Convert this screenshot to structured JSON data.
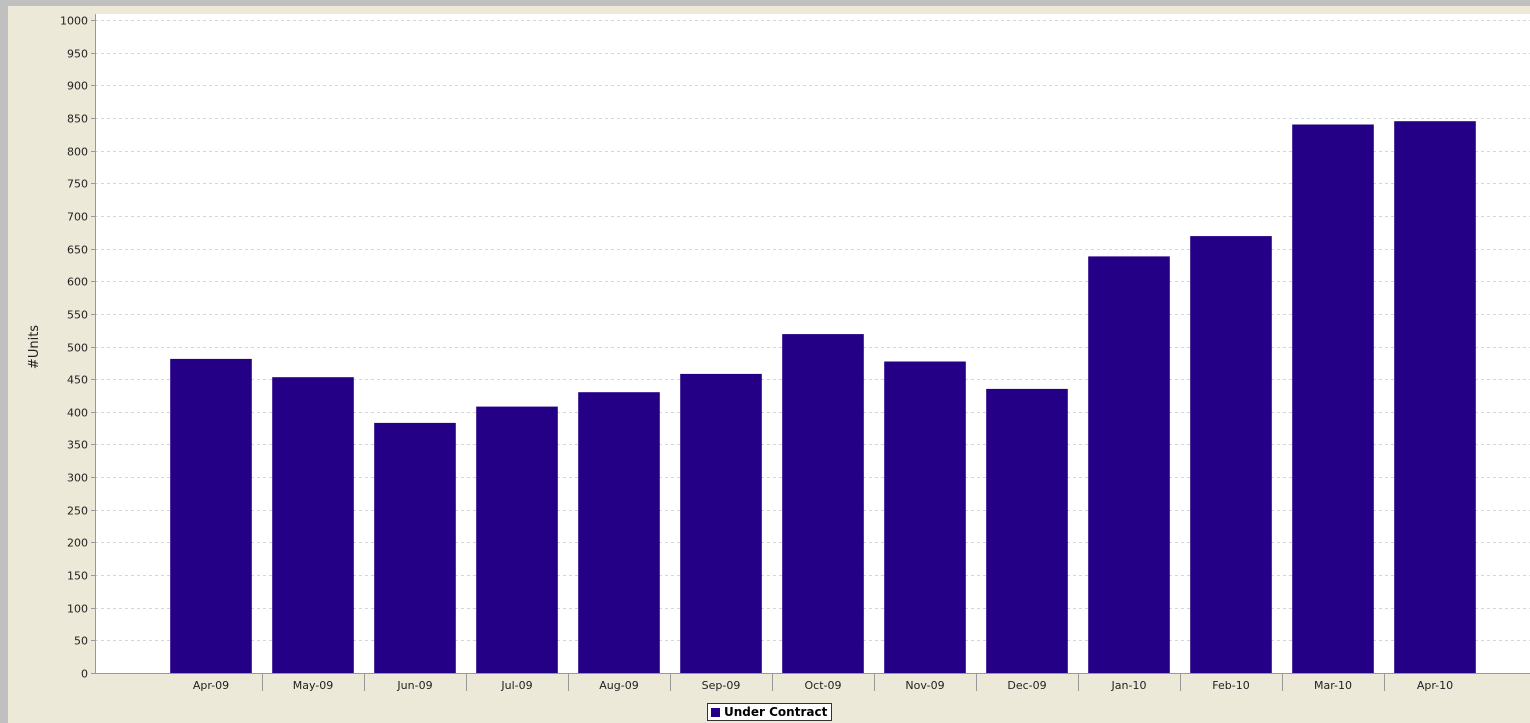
{
  "chart_data": {
    "type": "bar",
    "categories": [
      "Apr-09",
      "May-09",
      "Jun-09",
      "Jul-09",
      "Aug-09",
      "Sep-09",
      "Oct-09",
      "Nov-09",
      "Dec-09",
      "Jan-10",
      "Feb-10",
      "Mar-10",
      "Apr-10"
    ],
    "series": [
      {
        "name": "Under Contract",
        "values": [
          481,
          453,
          383,
          408,
          430,
          458,
          519,
          477,
          435,
          638,
          669,
          840,
          845
        ]
      }
    ],
    "title": "",
    "xlabel": "",
    "ylabel": "#Units",
    "ylim": [
      0,
      1000
    ],
    "ytick_step": 50,
    "grid": true,
    "legend_position": "bottom-center",
    "colors": {
      "bar": "#240087",
      "plot_background": "#ffffff",
      "frame_background": "#ece9d8",
      "gridline": "#d6d6d6",
      "axis": "#999999"
    }
  }
}
